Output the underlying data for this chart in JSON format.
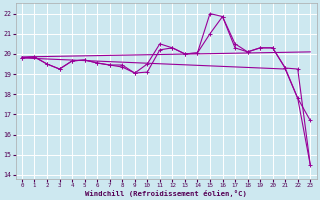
{
  "xlabel": "Windchill (Refroidissement éolien,°C)",
  "background_color": "#cde8f0",
  "grid_color": "#ffffff",
  "line_color": "#990099",
  "xlim": [
    -0.5,
    23.5
  ],
  "ylim": [
    13.8,
    22.5
  ],
  "yticks": [
    14,
    15,
    16,
    17,
    18,
    19,
    20,
    21,
    22
  ],
  "xticks": [
    0,
    1,
    2,
    3,
    4,
    5,
    6,
    7,
    8,
    9,
    10,
    11,
    12,
    13,
    14,
    15,
    16,
    17,
    18,
    19,
    20,
    21,
    22,
    23
  ],
  "series_zigzag1": {
    "x": [
      0,
      1,
      2,
      3,
      4,
      5,
      6,
      7,
      8,
      9,
      10,
      11,
      12,
      13,
      14,
      15,
      16,
      17,
      18,
      19,
      20,
      21,
      22,
      23
    ],
    "y": [
      19.8,
      19.85,
      19.5,
      19.25,
      19.65,
      19.7,
      19.55,
      19.45,
      19.45,
      19.05,
      19.5,
      20.5,
      20.3,
      20.0,
      20.05,
      21.0,
      21.85,
      20.3,
      20.1,
      20.3,
      20.3,
      19.3,
      17.8,
      16.7
    ]
  },
  "series_zigzag2": {
    "x": [
      0,
      1,
      2,
      3,
      4,
      5,
      6,
      7,
      8,
      9,
      10,
      11,
      12,
      13,
      14,
      15,
      16,
      17,
      18,
      19,
      20,
      21,
      22,
      23
    ],
    "y": [
      19.8,
      19.85,
      19.5,
      19.25,
      19.65,
      19.7,
      19.55,
      19.45,
      19.35,
      19.05,
      19.1,
      20.2,
      20.3,
      20.0,
      20.05,
      22.0,
      21.85,
      20.5,
      20.1,
      20.3,
      20.3,
      19.3,
      19.25,
      14.5
    ]
  },
  "series_flat": {
    "x": [
      0,
      23
    ],
    "y": [
      19.85,
      20.1
    ]
  },
  "series_diagonal": {
    "x": [
      0,
      21,
      22,
      23
    ],
    "y": [
      19.8,
      19.25,
      17.8,
      14.5
    ]
  }
}
